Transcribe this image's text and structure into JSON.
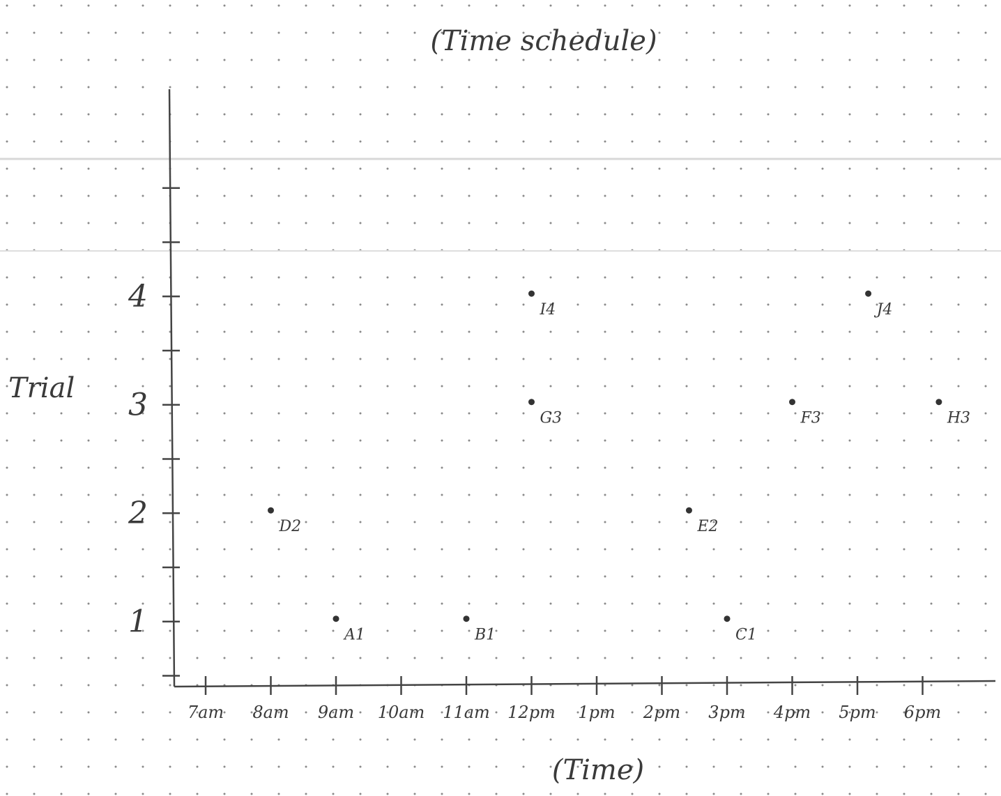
{
  "chart_data": {
    "type": "scatter",
    "title": "(Time schedule)",
    "xlabel": "(Time)",
    "ylabel": "Trial",
    "x_ticks": [
      "7am",
      "8am",
      "9am",
      "10am",
      "11am",
      "12pm",
      "1pm",
      "2pm",
      "3pm",
      "4pm",
      "5pm",
      "6pm"
    ],
    "y_ticks": [
      "1",
      "2",
      "3",
      "4"
    ],
    "xlim": [
      "7am",
      "6:45pm"
    ],
    "ylim": [
      0.5,
      5.5
    ],
    "grid": "dot-grid paper",
    "points": [
      {
        "label": "D2",
        "x": "8am",
        "y": 2
      },
      {
        "label": "A1",
        "x": "9am",
        "y": 1
      },
      {
        "label": "B1",
        "x": "11am",
        "y": 1
      },
      {
        "label": "I4",
        "x": "12pm",
        "y": 4
      },
      {
        "label": "G3",
        "x": "12pm",
        "y": 3
      },
      {
        "label": "E2",
        "x": "2:25pm",
        "y": 2
      },
      {
        "label": "C1",
        "x": "3pm",
        "y": 1
      },
      {
        "label": "F3",
        "x": "4pm",
        "y": 3
      },
      {
        "label": "J4",
        "x": "5:10pm",
        "y": 4
      },
      {
        "label": "H3",
        "x": "6:15pm",
        "y": 3
      }
    ]
  }
}
